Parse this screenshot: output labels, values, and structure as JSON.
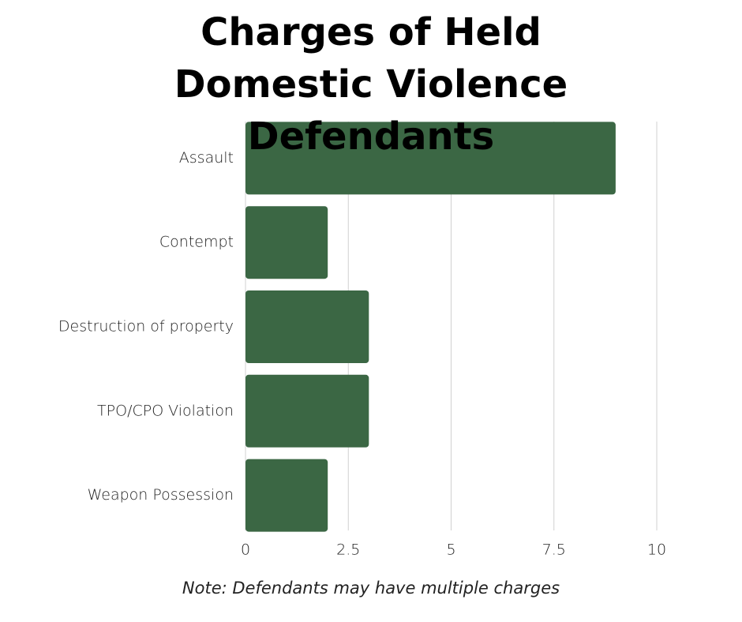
{
  "chart_data": {
    "type": "bar",
    "orientation": "horizontal",
    "title": "Charges of Held Domestic Violence Defendants",
    "categories": [
      "Assault",
      "Contempt",
      "Destruction of property",
      "TPO/CPO Violation",
      "Weapon Possession"
    ],
    "values": [
      9,
      2,
      3,
      3,
      2
    ],
    "color": "#3b6744",
    "xlim": [
      0,
      10
    ],
    "xticks": [
      0,
      2.5,
      5,
      7.5,
      10
    ],
    "grid": true,
    "annotation": "Note: Defendants may have multiple charges"
  }
}
